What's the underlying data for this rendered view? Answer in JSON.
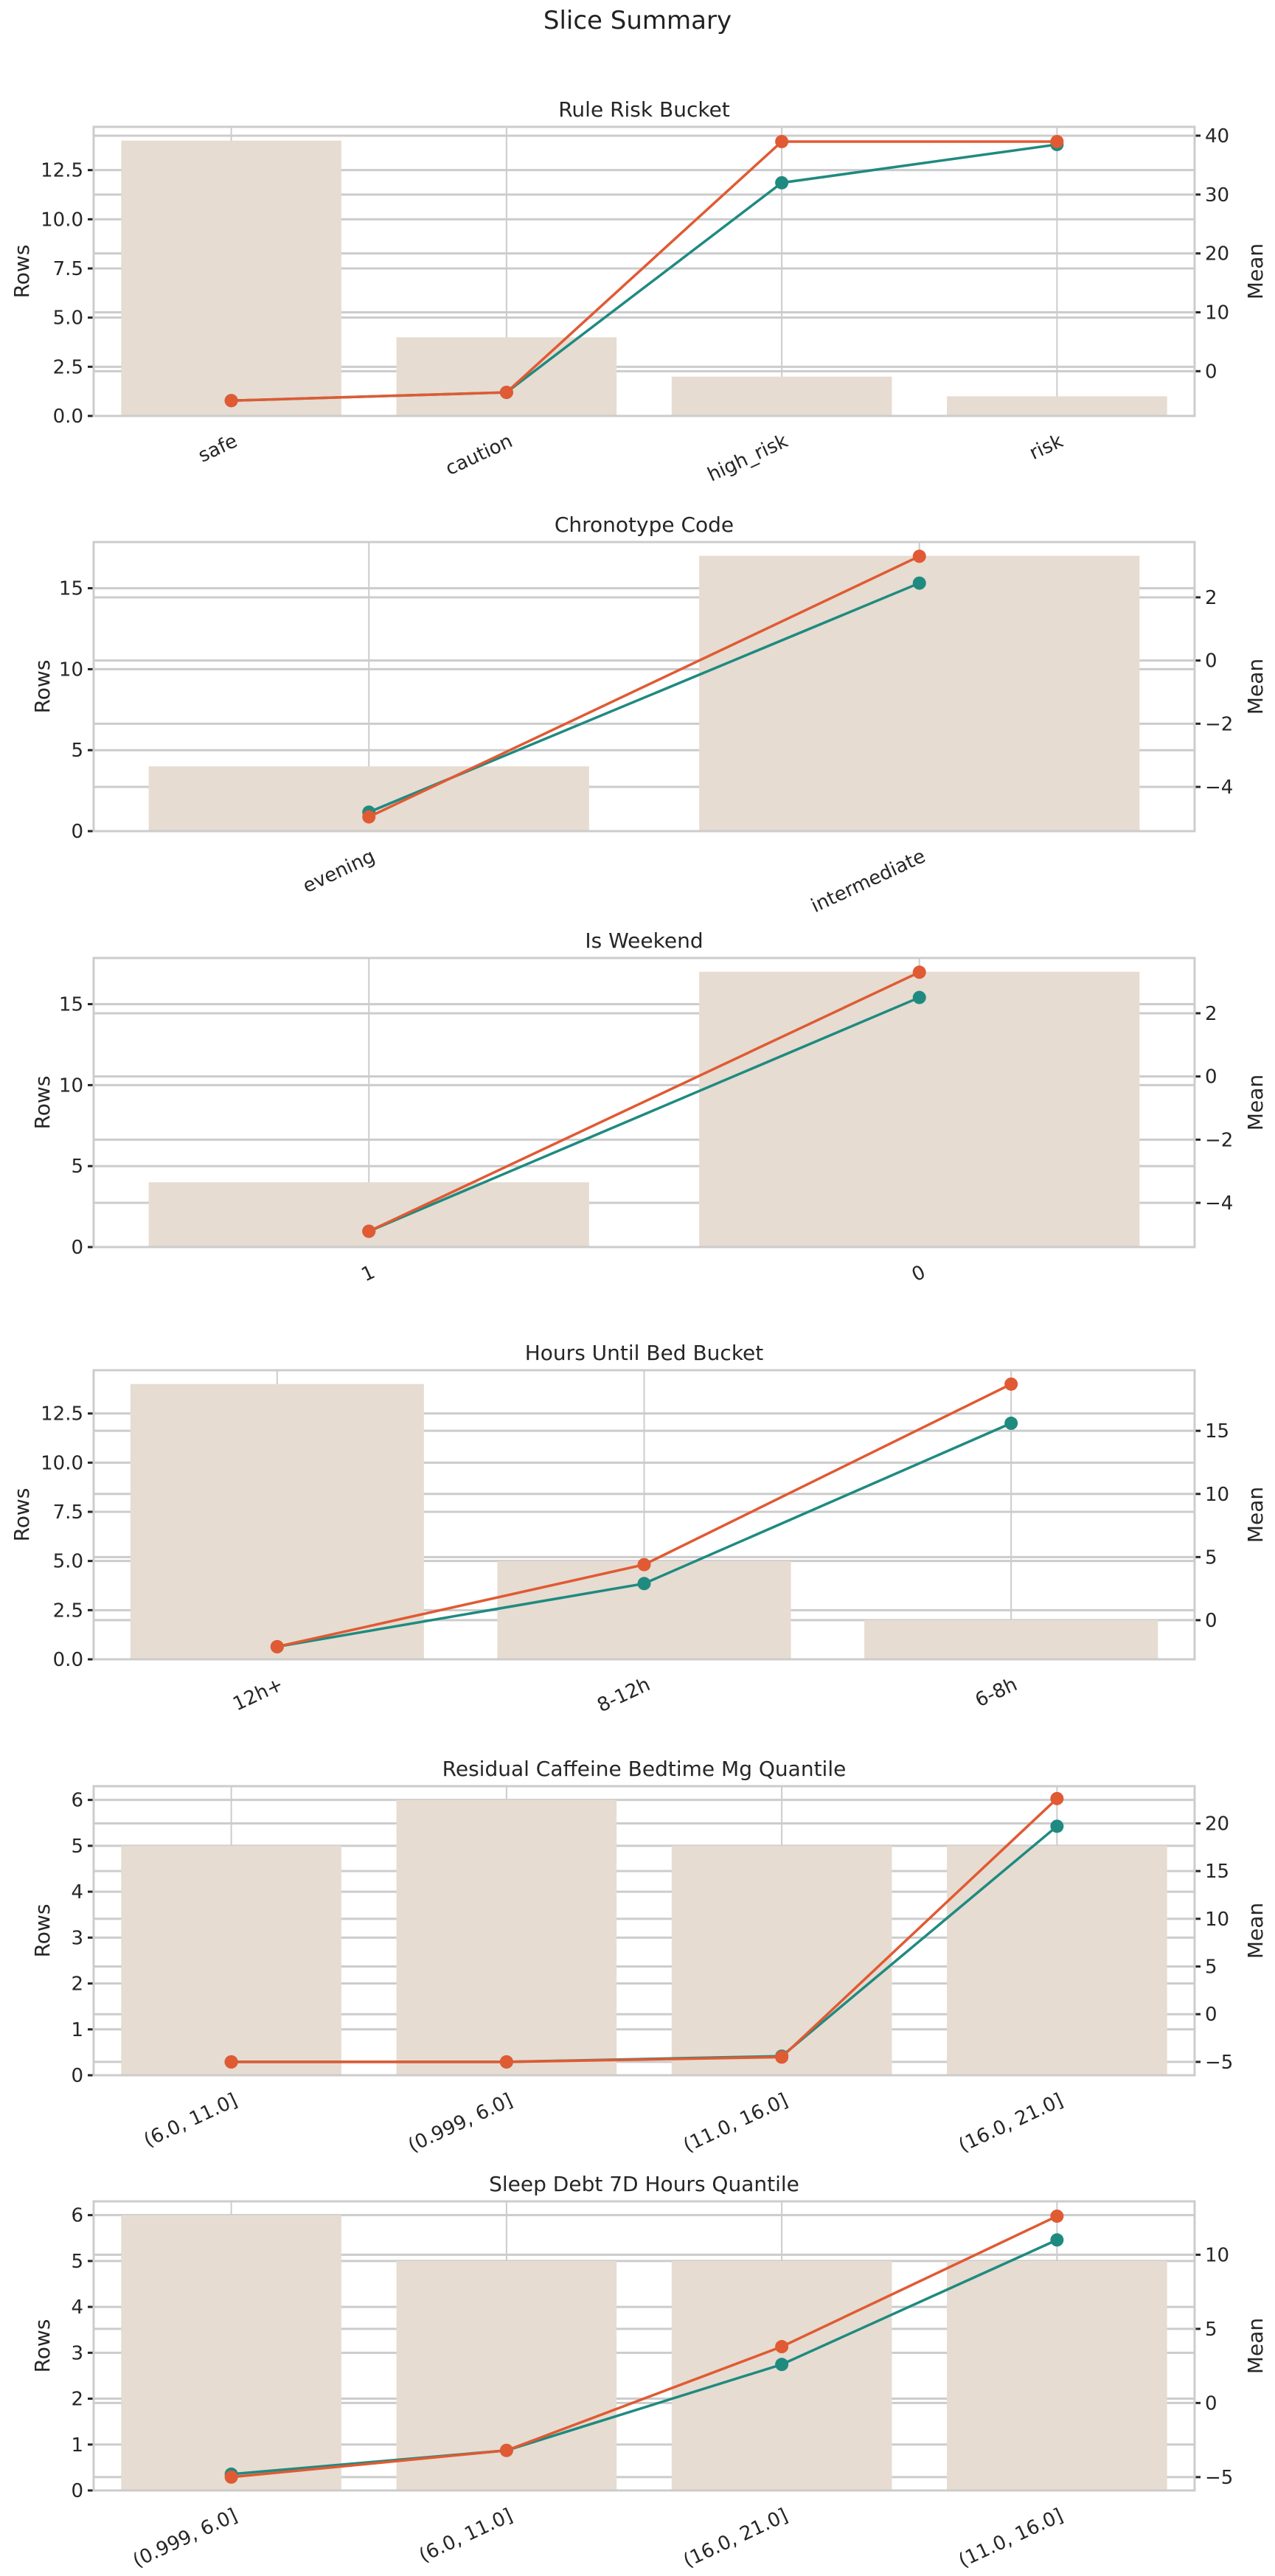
{
  "suptitle": "Slice Summary",
  "colors": {
    "bar": "#e6dcd1",
    "line_orange": "#e05a33",
    "line_teal": "#1f8a80",
    "grid": "#cccccc"
  },
  "chart_data": [
    {
      "type": "bar+line",
      "title": "Rule Risk Bucket",
      "ylabel": "Rows",
      "y2label": "Mean",
      "categories": [
        "safe",
        "caution",
        "high_risk",
        "risk"
      ],
      "bars": [
        14,
        4,
        2,
        1
      ],
      "ylim": [
        0,
        14.7
      ],
      "yticks": [
        "0.0",
        "2.5",
        "5.0",
        "7.5",
        "10.0",
        "12.5"
      ],
      "y2lim": [
        -7.6,
        41.5
      ],
      "y2ticks": [
        "0",
        "10",
        "20",
        "30",
        "40"
      ],
      "series": [
        {
          "color": "teal",
          "values": [
            -5,
            -3.6,
            32,
            38.5
          ]
        },
        {
          "color": "orange",
          "values": [
            -5,
            -3.6,
            39,
            39
          ]
        }
      ],
      "grid": true
    },
    {
      "type": "bar+line",
      "title": "Chronotype Code",
      "ylabel": "Rows",
      "y2label": "Mean",
      "categories": [
        "evening",
        "intermediate"
      ],
      "bars": [
        4,
        17
      ],
      "ylim": [
        0,
        17.85
      ],
      "yticks": [
        "0",
        "5",
        "10",
        "15"
      ],
      "y2lim": [
        -5.4,
        3.75
      ],
      "y2ticks": [
        "−4",
        "−2",
        "0",
        "2"
      ],
      "series": [
        {
          "color": "teal",
          "values": [
            -4.8,
            2.45
          ]
        },
        {
          "color": "orange",
          "values": [
            -4.95,
            3.3
          ]
        }
      ],
      "grid": true
    },
    {
      "type": "bar+line",
      "title": "Is Weekend",
      "ylabel": "Rows",
      "y2label": "Mean",
      "categories": [
        "1",
        "0"
      ],
      "bars": [
        4,
        17
      ],
      "ylim": [
        0,
        17.85
      ],
      "yticks": [
        "0",
        "5",
        "10",
        "15"
      ],
      "y2lim": [
        -5.4,
        3.75
      ],
      "y2ticks": [
        "−4",
        "−2",
        "0",
        "2"
      ],
      "series": [
        {
          "color": "teal",
          "values": [
            -4.9,
            2.5
          ]
        },
        {
          "color": "orange",
          "values": [
            -4.9,
            3.3
          ]
        }
      ],
      "grid": true
    },
    {
      "type": "bar+line",
      "title": "Hours Until Bed Bucket",
      "ylabel": "Rows",
      "y2label": "Mean",
      "categories": [
        "12h+",
        "8-12h",
        "6-8h"
      ],
      "bars": [
        14,
        5,
        2
      ],
      "ylim": [
        0,
        14.7
      ],
      "yticks": [
        "0.0",
        "2.5",
        "5.0",
        "7.5",
        "10.0",
        "12.5"
      ],
      "y2lim": [
        -3.1,
        19.8
      ],
      "y2ticks": [
        "0",
        "5",
        "10",
        "15"
      ],
      "series": [
        {
          "color": "teal",
          "values": [
            -2.1,
            2.9,
            15.6
          ]
        },
        {
          "color": "orange",
          "values": [
            -2.1,
            4.4,
            18.7
          ]
        }
      ],
      "grid": true
    },
    {
      "type": "bar+line",
      "title": "Residual Caffeine Bedtime Mg Quantile",
      "ylabel": "Rows",
      "y2label": "Mean",
      "categories": [
        "(6.0, 11.0]",
        "(0.999, 6.0]",
        "(11.0, 16.0]",
        "(16.0, 21.0]"
      ],
      "bars": [
        5,
        6,
        5,
        5
      ],
      "ylim": [
        0,
        6.3
      ],
      "yticks": [
        "0",
        "1",
        "2",
        "3",
        "4",
        "5",
        "6"
      ],
      "y2lim": [
        -6.4,
        23.9
      ],
      "y2ticks": [
        "−5",
        "0",
        "5",
        "10",
        "15",
        "20"
      ],
      "series": [
        {
          "color": "teal",
          "values": [
            -5,
            -5,
            -4.4,
            19.7
          ]
        },
        {
          "color": "orange",
          "values": [
            -5,
            -5,
            -4.5,
            22.6
          ]
        }
      ],
      "grid": true
    },
    {
      "type": "bar+line",
      "title": "Sleep Debt 7D Hours Quantile",
      "ylabel": "Rows",
      "y2label": "Mean",
      "categories": [
        "(0.999, 6.0]",
        "(6.0, 11.0]",
        "(16.0, 21.0]",
        "(11.0, 16.0]"
      ],
      "bars": [
        6,
        5,
        5,
        5
      ],
      "ylim": [
        0,
        6.3
      ],
      "yticks": [
        "0",
        "1",
        "2",
        "3",
        "4",
        "5",
        "6"
      ],
      "y2lim": [
        -5.9,
        13.6
      ],
      "y2ticks": [
        "−5",
        "0",
        "5",
        "10"
      ],
      "series": [
        {
          "color": "teal",
          "values": [
            -4.8,
            -3.2,
            2.6,
            11
          ]
        },
        {
          "color": "orange",
          "values": [
            -5,
            -3.2,
            3.8,
            12.6
          ]
        }
      ],
      "grid": true
    }
  ]
}
